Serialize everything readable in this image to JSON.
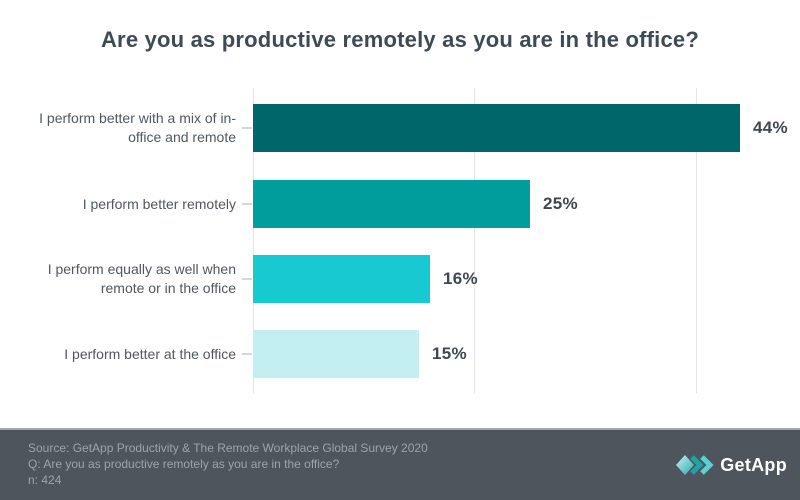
{
  "chart_data": {
    "type": "bar",
    "orientation": "horizontal",
    "title": "Are you as productive remotely as you are in the office?",
    "categories": [
      "I perform better with a mix of in-office and remote",
      "I perform better remotely",
      "I perform equally as well when remote or in the office",
      "I perform better at the office"
    ],
    "values": [
      44,
      25,
      16,
      15
    ],
    "value_labels": [
      "44%",
      "25%",
      "16%",
      "15%"
    ],
    "bar_colors": [
      "#006669",
      "#009D9D",
      "#19C9D1",
      "#C3EFF2"
    ],
    "xlim": [
      0,
      46
    ],
    "gridline_values": [
      0,
      20,
      40
    ],
    "grid": "vertical",
    "legend": "none",
    "grid_color": "#E3E6E8",
    "value_label_color": "#3E4852",
    "category_label_color": "#4E5861",
    "title_color": "#3E4A55"
  },
  "footer": {
    "lines": [
      "Source: GetApp Productivity & The Remote Workplace Global Survey 2020",
      "Q: Are you as productive remotely as you are in the office?",
      "n: 424"
    ],
    "background": "#4E555C",
    "text_color": "#9EA3A9",
    "logo": {
      "text": "GetApp",
      "icons": [
        "getapp-diamond-icon",
        "getapp-double-chevron-icon"
      ],
      "icon_colors": [
        "#CDF3F0",
        "#28A9AD",
        "#1FA3A8",
        "#5BD1D6"
      ],
      "text_color": "#FFFFFF"
    }
  }
}
